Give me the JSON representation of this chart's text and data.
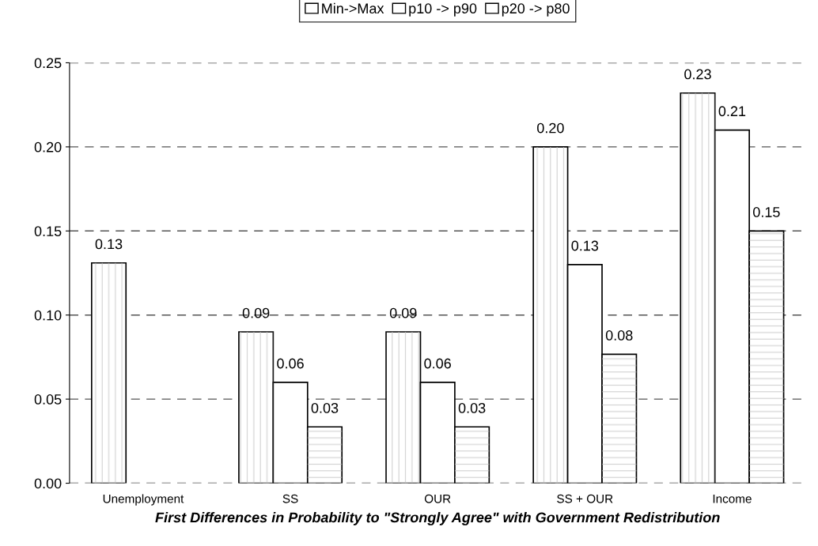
{
  "chart_data": {
    "type": "bar",
    "xlabel": "First Differences in Probability to \"Strongly Agree\" with Government Redistribution",
    "categories": [
      "Unemployment",
      "SS",
      "OUR",
      "SS + OUR",
      "Income"
    ],
    "series": [
      {
        "name": "Min->Max",
        "color": "#ffffff",
        "values": [
          0.131,
          0.09,
          0.09,
          0.2,
          0.232
        ],
        "value_labels": [
          "0.13",
          "0.09",
          "0.09",
          "0.20",
          "0.23"
        ]
      },
      {
        "name": "p10 -> p90",
        "color": "#ffffff",
        "values": [
          null,
          0.06,
          0.06,
          0.13,
          0.21
        ],
        "value_labels": [
          null,
          "0.06",
          "0.06",
          "0.13",
          "0.21"
        ]
      },
      {
        "name": "p20 -> p80",
        "color": "#ffffff",
        "values": [
          null,
          0.0335,
          0.0335,
          0.0767,
          0.15
        ],
        "value_labels": [
          null,
          "0.03",
          "0.03",
          "0.08",
          "0.15"
        ]
      }
    ],
    "ylim": [
      0,
      0.25
    ],
    "yticks": [
      {
        "value": 0,
        "label": "0.00"
      },
      {
        "value": 0.05,
        "label": "0.05"
      },
      {
        "value": 0.1,
        "label": "0.10"
      },
      {
        "value": 0.15,
        "label": "0.15"
      },
      {
        "value": 0.2,
        "label": "0.20"
      },
      {
        "value": 0.25,
        "label": "0.25"
      }
    ],
    "grid": "y",
    "legend": "top"
  }
}
